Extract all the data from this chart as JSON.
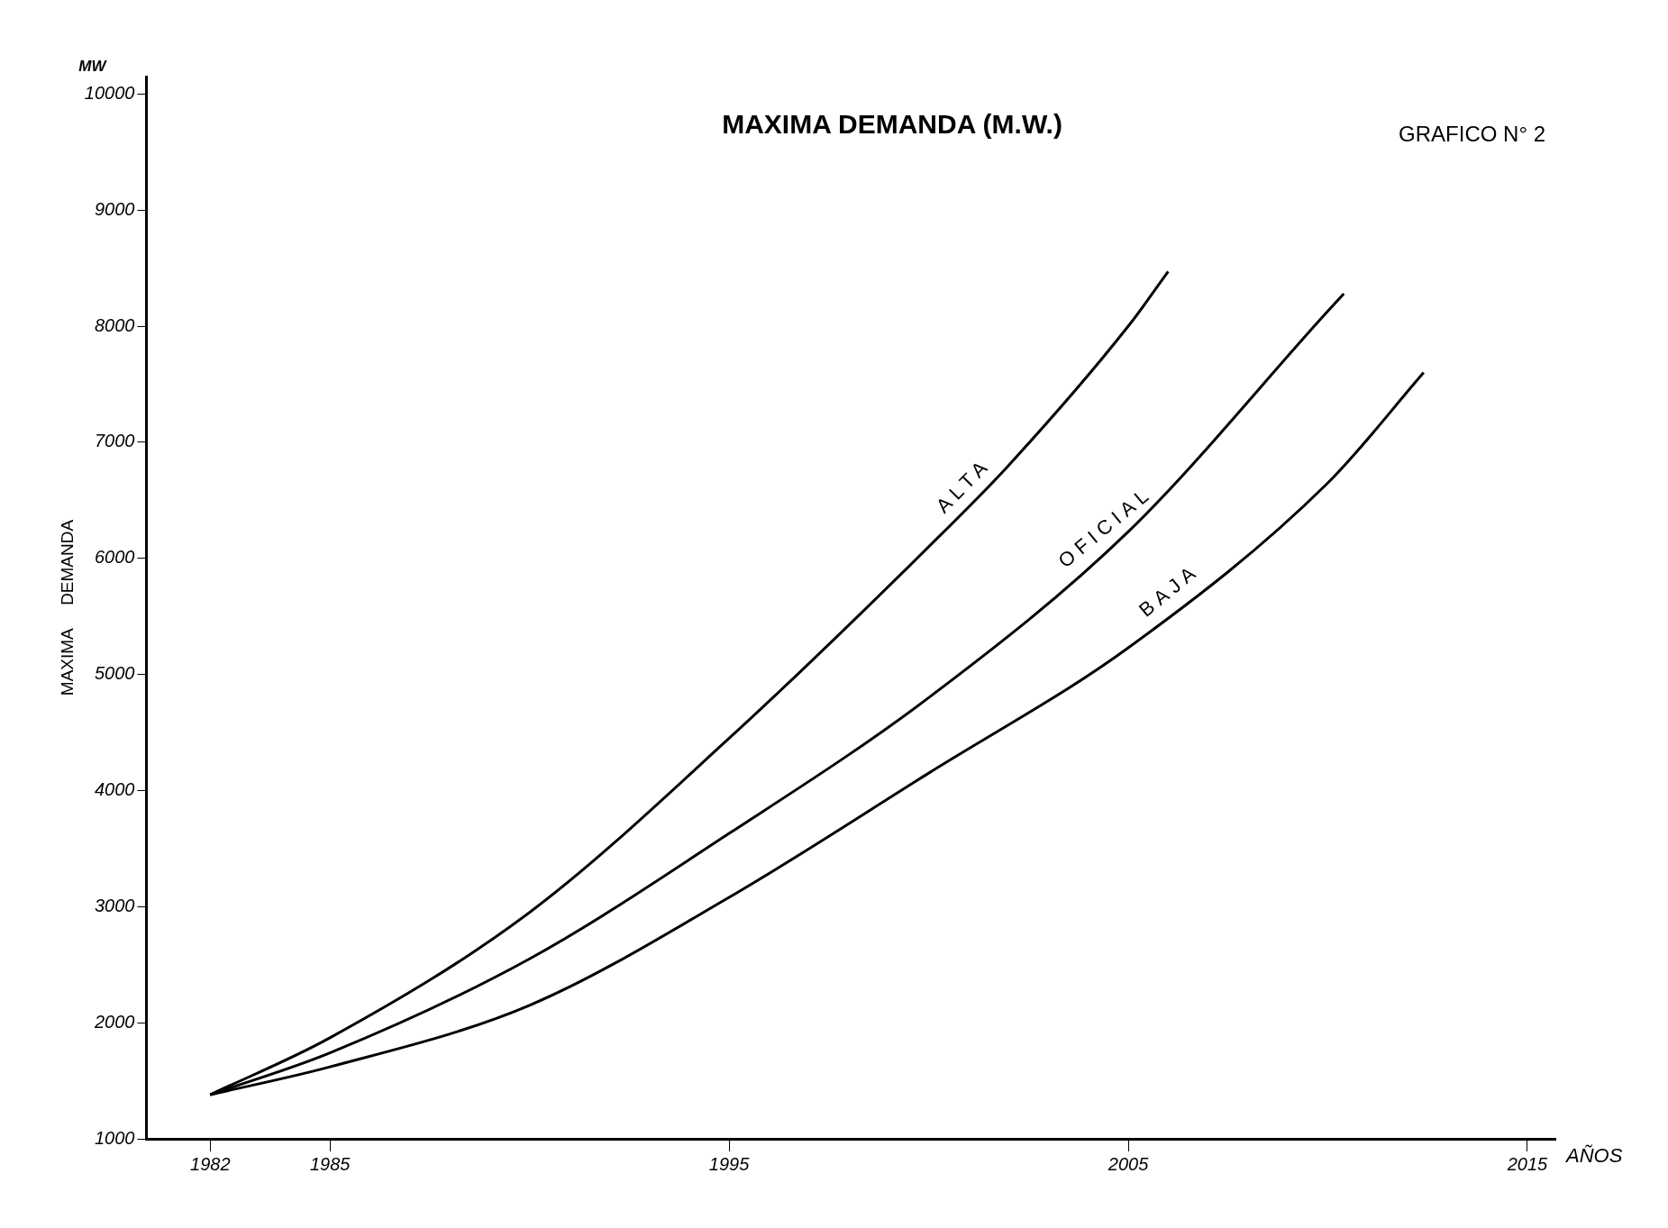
{
  "chart_data": {
    "type": "line",
    "title": "MAXIMA DEMANDA (M.W.)",
    "xlabel": "AÑOS",
    "ylabel": "MAXIMA     DEMANDA",
    "annotations": [
      "GRAFICO N° 2",
      "MW"
    ],
    "series": [
      {
        "name": "ALTA",
        "color": "#000000",
        "x": [
          1982,
          1985,
          1990,
          1995,
          2000,
          2002,
          2005,
          2006
        ],
        "values": [
          1380,
          1870,
          2950,
          4450,
          6100,
          6800,
          8000,
          8470
        ]
      },
      {
        "name": "OFICIAL",
        "color": "#000000",
        "x": [
          1982,
          1985,
          1990,
          1995,
          2000,
          2005,
          2010,
          2010.4
        ],
        "values": [
          1380,
          1740,
          2550,
          3630,
          4800,
          6230,
          8130,
          8280
        ]
      },
      {
        "name": "BAJA",
        "color": "#000000",
        "x": [
          1982,
          1985,
          1990,
          1995,
          2000,
          2005,
          2010,
          2012.4
        ],
        "values": [
          1380,
          1620,
          2150,
          3080,
          4150,
          5230,
          6650,
          7600
        ]
      }
    ],
    "xlim": [
      1980.4,
      2015.7
    ],
    "xticks": [
      1982,
      1985,
      1995,
      2005,
      2015
    ],
    "ylim": [
      1000,
      10150
    ],
    "yticks": [
      1000,
      2000,
      3000,
      4000,
      5000,
      6000,
      7000,
      8000,
      9000,
      10000
    ],
    "grid": false,
    "legend": false,
    "marker": "none",
    "line_style": "solid"
  }
}
